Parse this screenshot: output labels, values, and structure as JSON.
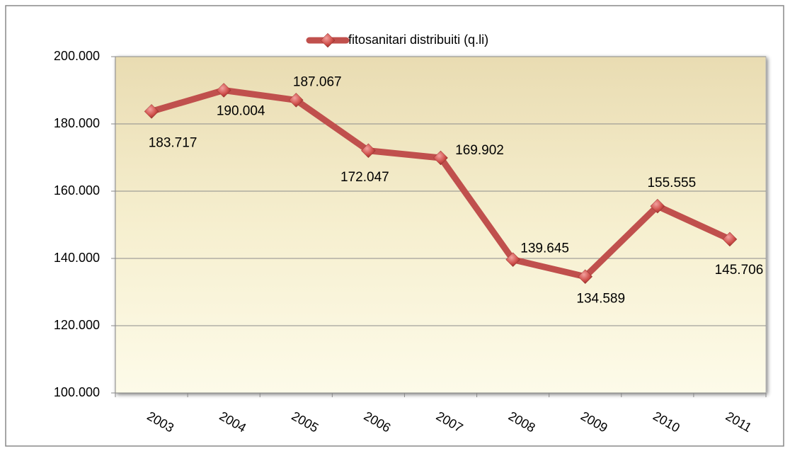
{
  "chart_data": {
    "type": "line",
    "categories": [
      "2003",
      "2004",
      "2005",
      "2006",
      "2007",
      "2008",
      "2009",
      "2010",
      "2011"
    ],
    "series": [
      {
        "name": "fitosanitari distribuiti (q.li)",
        "color": "#c0504d",
        "values": [
          183717,
          190004,
          187067,
          172047,
          169902,
          139645,
          134589,
          155555,
          145706
        ],
        "value_labels": [
          "183.717",
          "190.004",
          "187.067",
          "172.047",
          "169.902",
          "139.645",
          "134.589",
          "155.555",
          "145.706"
        ]
      }
    ],
    "ylim": [
      100000,
      200000
    ],
    "yticks": [
      {
        "value": 100000,
        "label": "100.000"
      },
      {
        "value": 120000,
        "label": "120.000"
      },
      {
        "value": 140000,
        "label": "140.000"
      },
      {
        "value": 160000,
        "label": "160.000"
      },
      {
        "value": 180000,
        "label": "180.000"
      },
      {
        "value": 200000,
        "label": "200.000"
      }
    ],
    "grid": true,
    "legend": "top"
  }
}
